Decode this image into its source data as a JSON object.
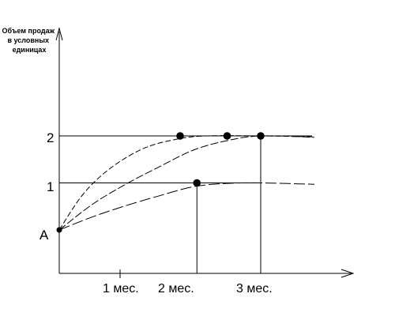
{
  "chart_data": {
    "type": "line",
    "ylabel_lines": [
      "Объем продаж",
      "в условных",
      "единицах"
    ],
    "y_tick_labels": [
      "2",
      "1",
      "A"
    ],
    "x_tick_labels": [
      "1 мес.",
      "2 мес.",
      "3 мес."
    ],
    "series": [
      {
        "x": [
          0,
          0.35,
          0.75,
          1.25,
          1.75,
          2.2,
          3.0,
          3.8
        ],
        "y": [
          0,
          0.75,
          1.3,
          1.73,
          1.93,
          2.0,
          2.0,
          1.98
        ]
      },
      {
        "x": [
          0,
          0.5,
          1.0,
          1.5,
          2.0,
          2.5,
          3.0,
          3.8
        ],
        "y": [
          0,
          0.55,
          0.98,
          1.35,
          1.7,
          1.9,
          2.0,
          1.97
        ]
      },
      {
        "x": [
          0,
          0.5,
          1.0,
          1.5,
          2.0,
          2.5,
          3.0,
          3.8
        ],
        "y": [
          0,
          0.28,
          0.52,
          0.73,
          0.92,
          0.99,
          1.0,
          0.97
        ]
      }
    ],
    "points": [
      {
        "x": 0,
        "y": 0
      },
      {
        "x": 1.8,
        "y": 2.0
      },
      {
        "x": 2.5,
        "y": 2.0
      },
      {
        "x": 2.05,
        "y": 1.0
      },
      {
        "x": 3.0,
        "y": 2.0
      }
    ],
    "reference_lines": {
      "horizontal": [
        1,
        2
      ],
      "vertical": [
        2.05,
        3.0
      ]
    },
    "xlim": [
      0,
      3.8
    ],
    "ylim": [
      -0.55,
      3.1
    ]
  }
}
